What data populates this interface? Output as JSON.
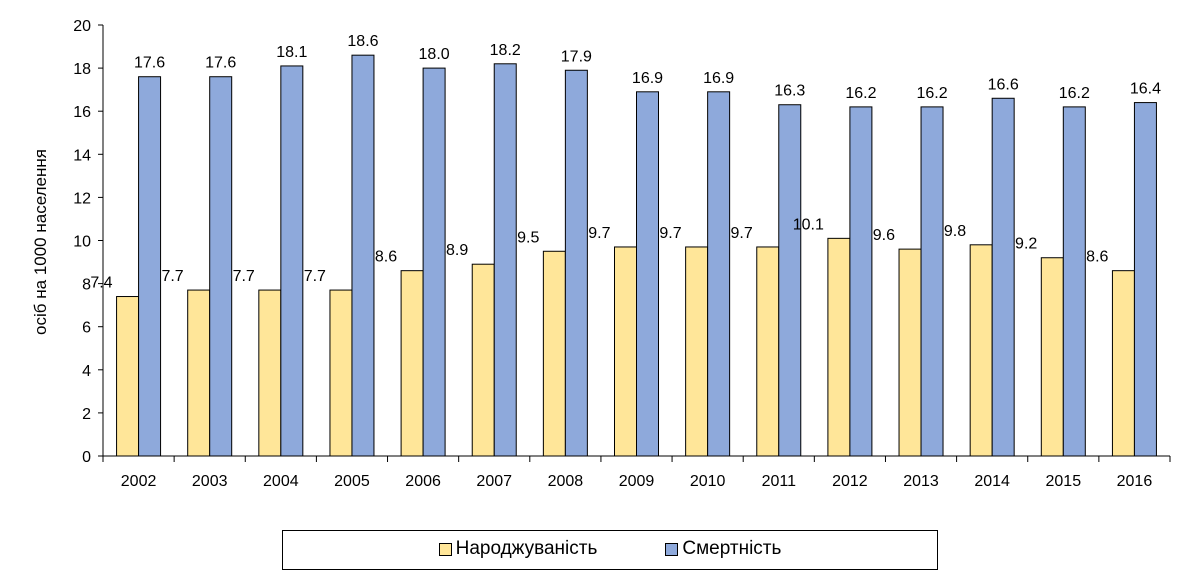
{
  "chart_data": {
    "type": "bar",
    "title": "",
    "xlabel": "",
    "ylabel": "осіб на 1000 населення",
    "ylim": [
      0,
      20
    ],
    "yticks": [
      0,
      2,
      4,
      6,
      8,
      10,
      12,
      14,
      16,
      18,
      20
    ],
    "grid": false,
    "legend_position": "bottom",
    "categories": [
      "2002",
      "2003",
      "2004",
      "2005",
      "2006",
      "2007",
      "2008",
      "2009",
      "2010",
      "2011",
      "2012",
      "2013",
      "2014",
      "2015",
      "2016"
    ],
    "series": [
      {
        "name": "Народжуваність",
        "color": "#FFE699",
        "values": [
          7.4,
          7.7,
          7.7,
          7.7,
          8.6,
          8.9,
          9.5,
          9.7,
          9.7,
          9.7,
          10.1,
          9.6,
          9.8,
          9.2,
          8.6
        ],
        "labels": [
          "7.4",
          "7.7",
          "7.7",
          "7.7",
          "8.6",
          "8.9",
          "9.5",
          "9.7",
          "9.7",
          "9.7",
          "10.1",
          "9.6",
          "9.8",
          "9.2",
          "8.6"
        ]
      },
      {
        "name": "Смертність",
        "color": "#8EA9DB",
        "values": [
          17.6,
          17.6,
          18.1,
          18.6,
          18.0,
          18.2,
          17.9,
          16.9,
          16.9,
          16.3,
          16.2,
          16.2,
          16.6,
          16.2,
          16.4
        ],
        "labels": [
          "17.6",
          "17.6",
          "18.1",
          "18.6",
          "18.0",
          "18.2",
          "17.9",
          "16.9",
          "16.9",
          "16.3",
          "16.2",
          "16.2",
          "16.6",
          "16.2",
          "16.4"
        ]
      }
    ]
  }
}
